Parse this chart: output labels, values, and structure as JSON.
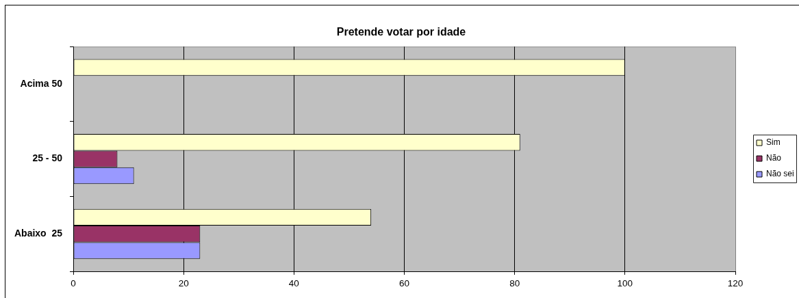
{
  "chart_data": {
    "type": "bar",
    "orientation": "horizontal",
    "title": "Pretende votar por idade",
    "categories": [
      "Acima 50",
      "25 - 50",
      "Abaixo  25"
    ],
    "series": [
      {
        "name": "Sim",
        "color": "#ffffcc",
        "values": [
          100,
          81,
          54
        ]
      },
      {
        "name": "Não",
        "color": "#993366",
        "values": [
          null,
          8,
          23
        ]
      },
      {
        "name": "Não sei",
        "color": "#9999ff",
        "values": [
          null,
          11,
          23
        ]
      }
    ],
    "xlim": [
      0,
      120
    ],
    "xticks": [
      0,
      20,
      40,
      60,
      80,
      100,
      120
    ],
    "grid": "x",
    "legend": "right"
  }
}
